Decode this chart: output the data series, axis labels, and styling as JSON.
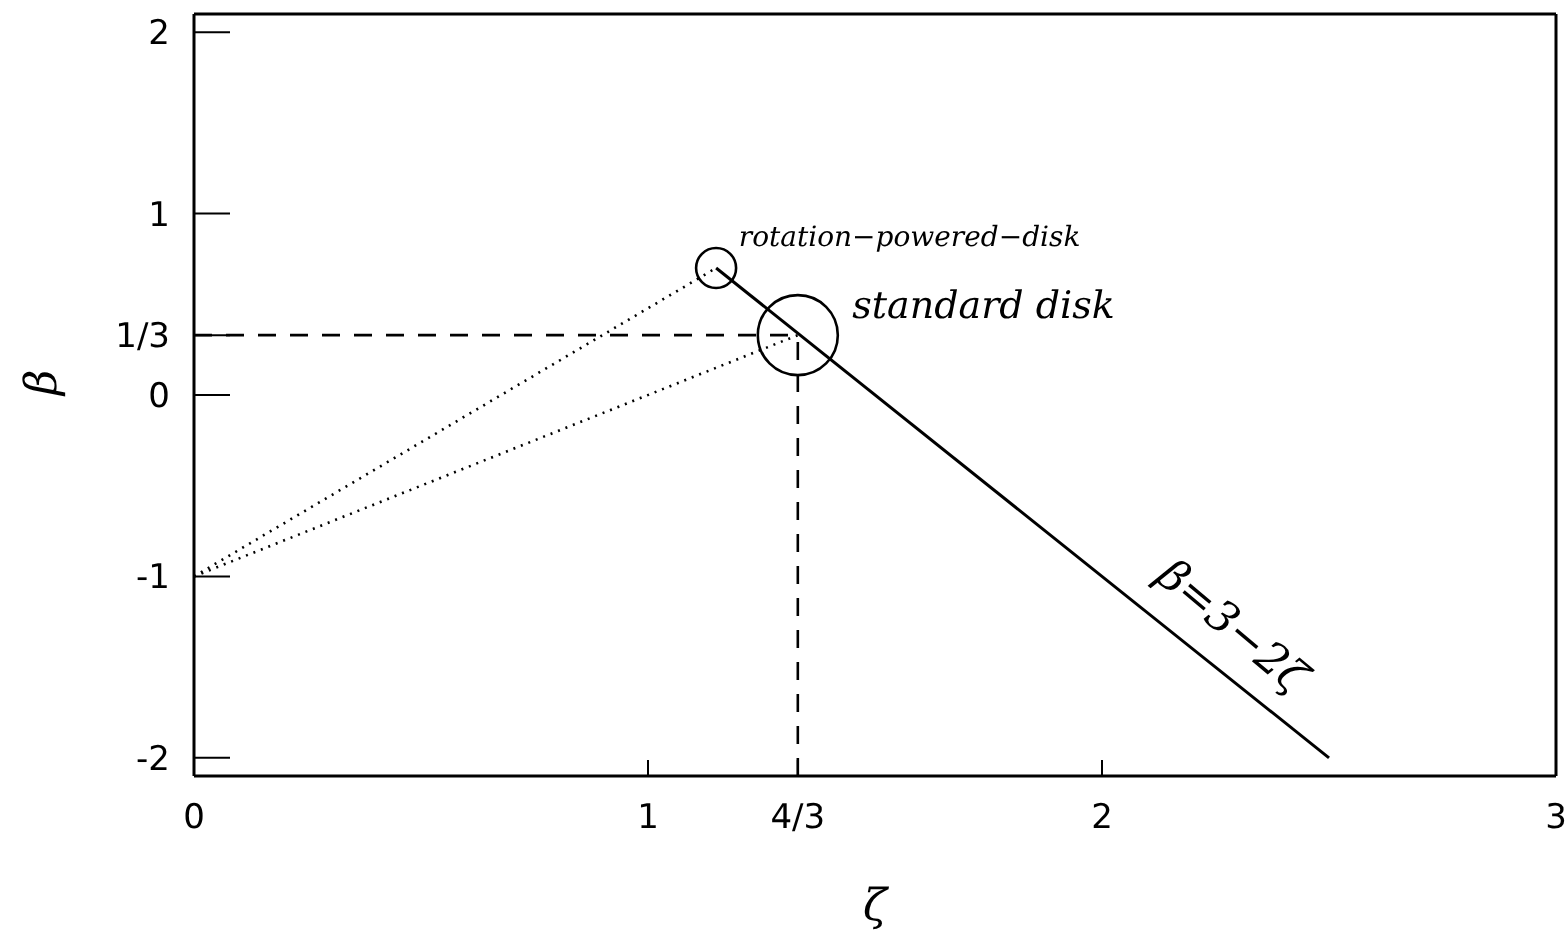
{
  "chart_data": {
    "type": "line",
    "xlabel": "ζ",
    "ylabel": "β",
    "xlim": [
      0,
      3
    ],
    "xticks": [
      0,
      1,
      {
        "value": 1.33,
        "label": "4/3"
      },
      2,
      3
    ],
    "ylim": [
      -2.1,
      2.1
    ],
    "yticks": [
      -2,
      -1,
      0,
      {
        "value": 0.33,
        "label": "1/3"
      },
      1,
      2
    ],
    "series": [
      {
        "color": "#000000",
        "line_style": "solid",
        "x": [
          1.15,
          2.5
        ],
        "values": [
          0.7,
          -2
        ]
      },
      {
        "color": "#000000",
        "line_style": "dotted",
        "x": [
          0,
          1.15
        ],
        "values": [
          -1,
          0.7
        ]
      },
      {
        "color": "#000000",
        "line_style": "dotted",
        "x": [
          0,
          1.33
        ],
        "values": [
          -1,
          0.33
        ]
      },
      {
        "type": "bubble",
        "color": "#000000",
        "x": [
          1.15,
          1.33
        ],
        "values": [
          0.7,
          0.33
        ],
        "sizes": [
          0.25,
          1
        ]
      }
    ],
    "ref_lines": [
      {
        "axis": "y",
        "value": 0.33,
        "color": "#000000",
        "line_style": "dashed"
      },
      {
        "axis": "x",
        "value": 1.33,
        "color": "#000000",
        "line_style": "dashed"
      }
    ],
    "annotations": [
      "rotation−powered−disk",
      "standard disk",
      "β=3−2ζ"
    ]
  }
}
